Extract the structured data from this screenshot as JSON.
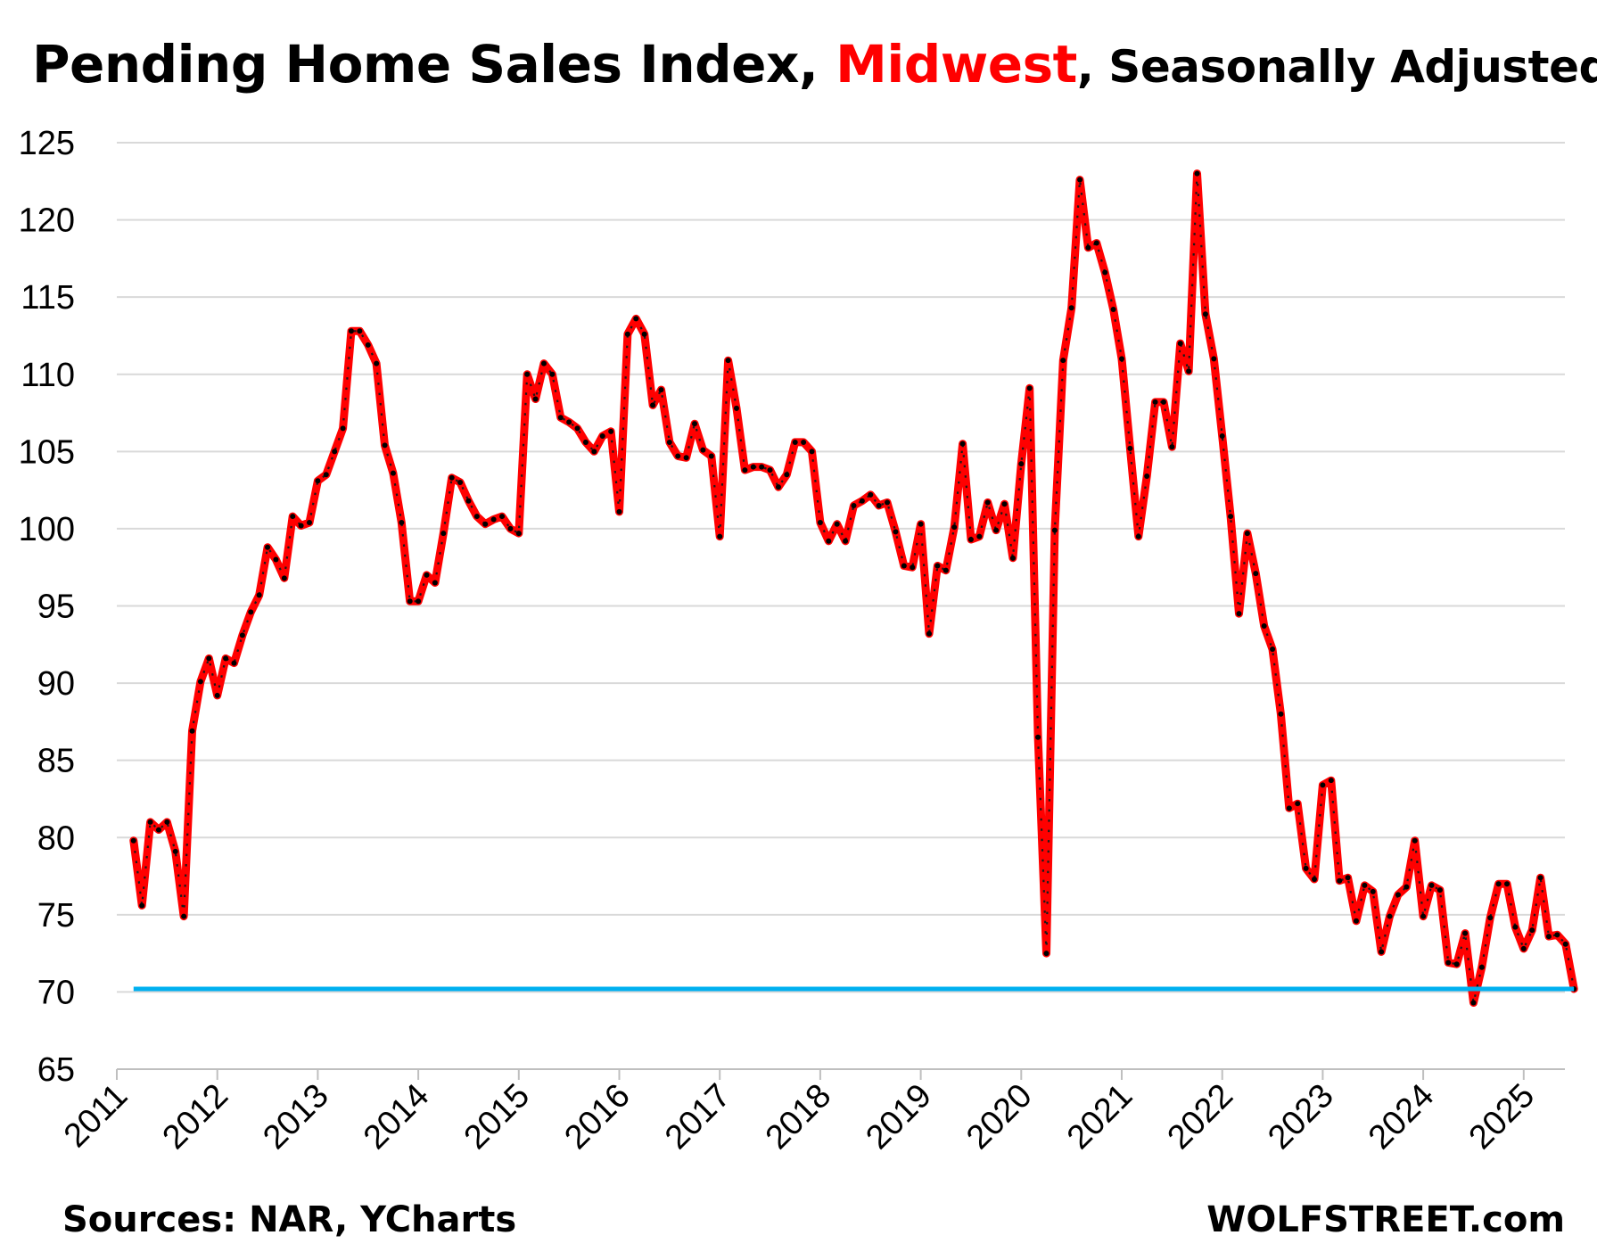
{
  "title": {
    "part1": "Pending Home Sales Index, ",
    "highlight": "Midwest",
    "part2": ", Seasonally Adjusted",
    "highlight_color": "#ff0000"
  },
  "footer": {
    "source": "Sources: NAR, YCharts",
    "credit": "WOLFSTREET.com"
  },
  "chart_data": {
    "type": "line",
    "title": "Pending Home Sales Index, Midwest, Seasonally Adjusted",
    "xlabel": "",
    "ylabel": "",
    "ylim": [
      65,
      125
    ],
    "y_ticks": [
      65,
      70,
      75,
      80,
      85,
      90,
      95,
      100,
      105,
      110,
      115,
      120,
      125
    ],
    "x_ticks": [
      "2011",
      "2012",
      "2013",
      "2014",
      "2015",
      "2016",
      "2017",
      "2018",
      "2019",
      "2020",
      "2021",
      "2022",
      "2023",
      "2024",
      "2025"
    ],
    "grid": true,
    "series": [
      {
        "color": "#ff0000",
        "marker_color": "#000000",
        "x_start": "2011-03",
        "frequency": "monthly",
        "values": [
          79.8,
          75.6,
          81.0,
          80.5,
          81.0,
          79.1,
          74.9,
          86.9,
          90.1,
          91.6,
          89.2,
          91.6,
          91.3,
          93.1,
          94.6,
          95.7,
          98.8,
          98.0,
          96.8,
          100.8,
          100.2,
          100.4,
          103.1,
          103.5,
          105.0,
          106.5,
          112.8,
          112.8,
          111.9,
          110.7,
          105.4,
          103.6,
          100.4,
          95.3,
          95.3,
          97.0,
          96.5,
          99.7,
          103.3,
          103.0,
          101.8,
          100.8,
          100.3,
          100.6,
          100.8,
          100.0,
          99.7,
          110.0,
          108.4,
          110.7,
          110.0,
          107.2,
          106.9,
          106.5,
          105.6,
          105.0,
          106.0,
          106.3,
          101.1,
          112.6,
          113.6,
          112.6,
          108.0,
          109.0,
          105.6,
          104.7,
          104.6,
          106.8,
          105.1,
          104.7,
          99.5,
          110.9,
          107.8,
          103.8,
          104.0,
          104.0,
          103.8,
          102.7,
          103.5,
          105.6,
          105.6,
          105.0,
          100.4,
          99.2,
          100.3,
          99.2,
          101.5,
          101.8,
          102.2,
          101.5,
          101.7,
          99.8,
          97.6,
          97.5,
          100.3,
          93.2,
          97.6,
          97.3,
          100.1,
          105.5,
          99.3,
          99.5,
          101.7,
          99.9,
          101.6,
          98.1,
          104.2,
          109.1,
          86.5,
          72.5,
          99.9,
          110.9,
          114.3,
          122.6,
          118.2,
          118.5,
          116.6,
          114.2,
          111.0,
          105.2,
          99.5,
          103.4,
          108.2,
          108.2,
          105.3,
          112.0,
          110.2,
          123.0,
          113.9,
          111.0,
          106.0,
          100.8,
          94.5,
          99.7,
          97.1,
          93.7,
          92.2,
          88.0,
          81.9,
          82.2,
          78.0,
          77.3,
          83.4,
          83.7,
          77.2,
          77.4,
          74.6,
          76.9,
          76.5,
          72.6,
          74.9,
          76.3,
          76.8,
          79.8,
          74.9,
          76.9,
          76.6,
          71.9,
          71.8,
          73.8,
          69.3,
          71.6,
          74.8,
          77.0,
          77.0,
          74.2,
          72.8,
          74.0,
          77.4,
          73.6,
          73.7,
          73.1,
          70.2
        ]
      },
      {
        "color": "#00b0f0",
        "constant": 70.2,
        "x_start": "2011-03",
        "x_end": "2025-07"
      }
    ]
  }
}
